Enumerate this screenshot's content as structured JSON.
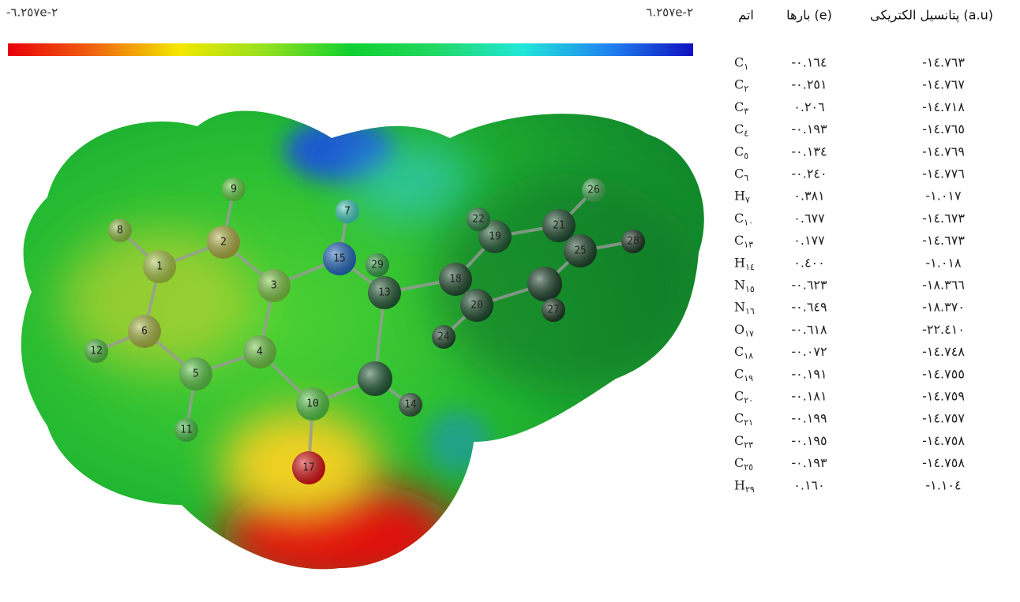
{
  "colorbar": {
    "min_label": "-٦.٢٥٧e-٢",
    "max_label": "٦.٢٥٧e-٢"
  },
  "molecule": {
    "atom_labels": [
      "1",
      "2",
      "3",
      "4",
      "5",
      "6",
      "7",
      "8",
      "9",
      "10",
      "11",
      "12",
      "13",
      "14",
      "15",
      "17",
      "18",
      "19",
      "20",
      "21",
      "22",
      "24",
      "25",
      "26",
      "27",
      "28",
      "29"
    ]
  },
  "table": {
    "headers": [
      "اتم",
      "(e) بارها",
      "(a.u) پتانسیل الکتریکی"
    ],
    "rows": [
      {
        "element": "C",
        "index": "١",
        "charge": "-٠.١٦٤",
        "potential": "-١٤.٧٦٣"
      },
      {
        "element": "C",
        "index": "٢",
        "charge": "-٠.٢٥١",
        "potential": "-١٤.٧٦٧"
      },
      {
        "element": "C",
        "index": "٣",
        "charge": "٠.٢٠٦",
        "potential": "-١٤.٧١٨"
      },
      {
        "element": "C",
        "index": "٤",
        "charge": "-٠.١٩٣",
        "potential": "-١٤.٧٦٥"
      },
      {
        "element": "C",
        "index": "٥",
        "charge": "-٠.١٣٤",
        "potential": "-١٤.٧٦٩"
      },
      {
        "element": "C",
        "index": "٦",
        "charge": "-٠.٢٤٠",
        "potential": "-١٤.٧٧٦"
      },
      {
        "element": "H",
        "index": "٧",
        "charge": "٠.٣٨١",
        "potential": "-١.٠١٧"
      },
      {
        "element": "C",
        "index": "١٠",
        "charge": "٠.٦٧٧",
        "potential": "-١٤.٦٧٣"
      },
      {
        "element": "C",
        "index": "١٣",
        "charge": "٠.١٧٧",
        "potential": "-١٤.٦٧٣"
      },
      {
        "element": "H",
        "index": "١٤",
        "charge": "٠.٤٠٠",
        "potential": "-١.٠١٨"
      },
      {
        "element": "N",
        "index": "١٥",
        "charge": "-٠.٦٢٣",
        "potential": "-١٨.٣٦٦"
      },
      {
        "element": "N",
        "index": "١٦",
        "charge": "-٠.٦٤٩",
        "potential": "-١٨.٣٧٠"
      },
      {
        "element": "O",
        "index": "١٧",
        "charge": "-٠.٦١٨",
        "potential": "-٢٢.٤١٠"
      },
      {
        "element": "C",
        "index": "١٨",
        "charge": "-٠.٠٧٢",
        "potential": "-١٤.٧٤٨"
      },
      {
        "element": "C",
        "index": "١٩",
        "charge": "-٠.١٩١",
        "potential": "-١٤.٧٥٥"
      },
      {
        "element": "C",
        "index": "٢٠",
        "charge": "-٠.١٨١",
        "potential": "-١٤.٧٥٩"
      },
      {
        "element": "C",
        "index": "٢١",
        "charge": "-٠.١٩٩",
        "potential": "-١٤.٧٥٧"
      },
      {
        "element": "C",
        "index": "٢٣",
        "charge": "-٠.١٩٥",
        "potential": "-١٤.٧٥٨"
      },
      {
        "element": "C",
        "index": "٢٥",
        "charge": "-٠.١٩٣",
        "potential": "-١٤.٧٥٨"
      },
      {
        "element": "H",
        "index": "٢٩",
        "charge": "٠.١٦٠",
        "potential": "-١.١٠٤"
      }
    ]
  }
}
